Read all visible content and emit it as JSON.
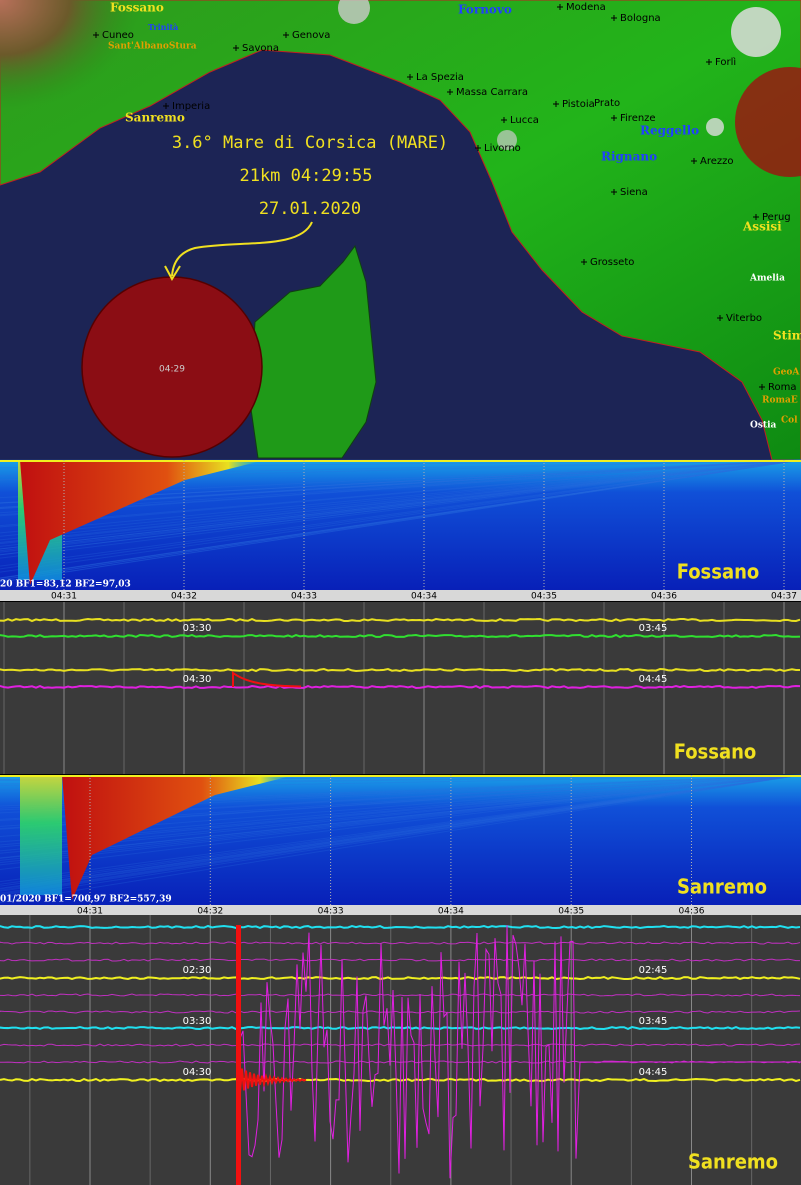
{
  "map": {
    "places": [
      {
        "label": "Fossano"
      },
      {
        "label": "Trinità"
      },
      {
        "label": "Cuneo"
      },
      {
        "label": "Sant'AlbanoStura"
      },
      {
        "label": "Savona"
      },
      {
        "label": "Genova"
      },
      {
        "label": "Imperia"
      },
      {
        "label": "Sanremo"
      },
      {
        "label": "Fornovo"
      },
      {
        "label": "Modena"
      },
      {
        "label": "Bologna"
      },
      {
        "label": "Forlì"
      },
      {
        "label": "La Spezia"
      },
      {
        "label": "Massa Carrara"
      },
      {
        "label": "Lucca"
      },
      {
        "label": "Pistoia"
      },
      {
        "label": "Prato"
      },
      {
        "label": "Firenze"
      },
      {
        "label": "Reggello"
      },
      {
        "label": "Livorno"
      },
      {
        "label": "Rignano"
      },
      {
        "label": "Arezzo"
      },
      {
        "label": "Siena"
      },
      {
        "label": "Perug"
      },
      {
        "label": "Assisi"
      },
      {
        "label": "Grosseto"
      },
      {
        "label": "Amelia"
      },
      {
        "label": "Viterbo"
      },
      {
        "label": "Stim"
      },
      {
        "label": "GeoA"
      },
      {
        "label": "Roma"
      },
      {
        "label": "RomaE"
      },
      {
        "label": "Col"
      },
      {
        "label": "Ostia"
      }
    ],
    "event": {
      "title": "3.6° Mare di Corsica (MARE)",
      "detail": "21km 04:29:55",
      "date": "27.01.2020",
      "circle_label": "04:29"
    }
  },
  "panels": [
    {
      "spectrogram": {
        "info": "20 BF1=83,12 BF2=97,03",
        "station": "Fossano",
        "axis_labels": [
          "04:31",
          "04:32",
          "04:33",
          "04:34",
          "04:35",
          "04:36",
          "04:37"
        ]
      },
      "seismogram": {
        "hour_labels": [
          "03:30",
          "03:45",
          "04:30",
          "04:45"
        ],
        "station": "Fossano"
      }
    },
    {
      "spectrogram": {
        "info": "01/2020 BF1=700,97 BF2=557,39",
        "station": "Sanremo",
        "axis_labels": [
          "04:31",
          "04:32",
          "04:33",
          "04:34",
          "04:35",
          "04:36"
        ]
      },
      "seismogram": {
        "hour_labels": [
          "02:30",
          "02:45",
          "03:30",
          "03:45",
          "04:30",
          "04:45"
        ],
        "station": "Sanremo"
      }
    }
  ]
}
